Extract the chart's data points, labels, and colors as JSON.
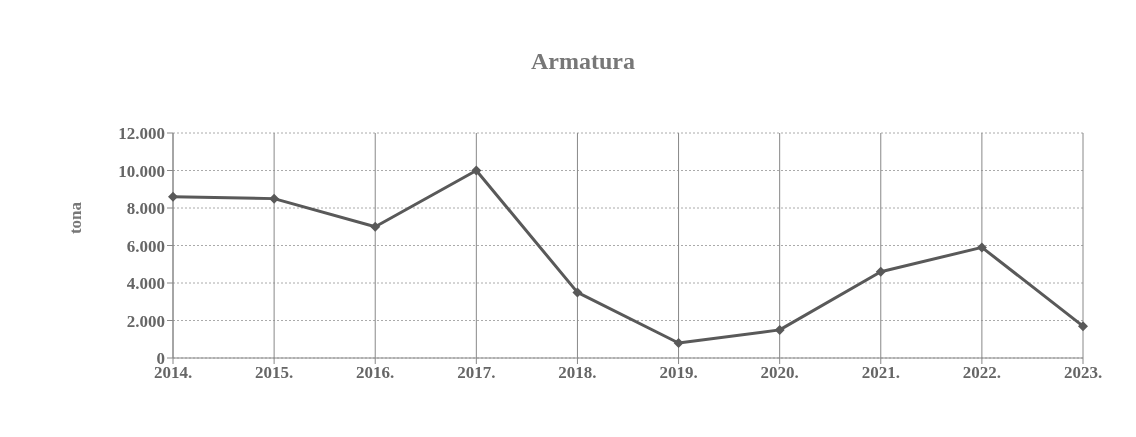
{
  "chart_data": {
    "type": "line",
    "title": "Armatura",
    "ylabel": "tona",
    "categories": [
      "2014.",
      "2015.",
      "2016.",
      "2017.",
      "2018.",
      "2019.",
      "2020.",
      "2021.",
      "2022.",
      "2023."
    ],
    "series": [
      {
        "color": "#595959",
        "values": [
          8600,
          8500,
          7000,
          10000,
          3500,
          800,
          1500,
          4600,
          5900,
          1700
        ]
      }
    ],
    "ylim": [
      0,
      12000
    ],
    "yticks": [
      {
        "value": 0,
        "label": "0"
      },
      {
        "value": 2000,
        "label": "2.000"
      },
      {
        "value": 4000,
        "label": "4.000"
      },
      {
        "value": 6000,
        "label": "6.000"
      },
      {
        "value": 8000,
        "label": "8.000"
      },
      {
        "value": 10000,
        "label": "10.000"
      },
      {
        "value": 12000,
        "label": "12.000"
      }
    ],
    "grid": true,
    "legend": false,
    "marker": "diamond",
    "line_style": "solid"
  }
}
